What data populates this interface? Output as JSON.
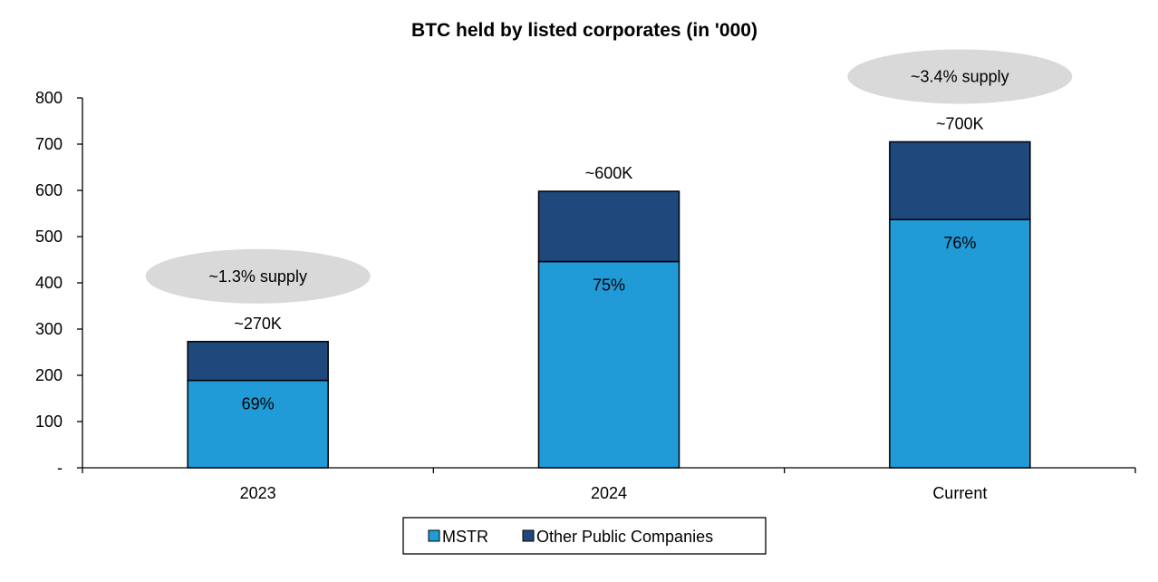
{
  "chart_data": {
    "type": "bar",
    "stacked": true,
    "title": "BTC held by listed corporates (in '000)",
    "categories": [
      "2023",
      "2024",
      "Current"
    ],
    "series": [
      {
        "name": "MSTR",
        "values": [
          189,
          446,
          537
        ],
        "color": "#219bd8"
      },
      {
        "name": "Other Public Companies",
        "values": [
          84,
          152,
          168
        ],
        "color": "#1f497d"
      }
    ],
    "total_labels": [
      "~270K",
      "~600K",
      "~700K"
    ],
    "percent_labels": [
      "69%",
      "75%",
      "76%"
    ],
    "supply_annotations": [
      {
        "category": "2023",
        "text": "~1.3% supply"
      },
      {
        "category": "Current",
        "text": "~3.4% supply"
      }
    ],
    "ylim": [
      0,
      800
    ],
    "yticks": [
      0,
      100,
      200,
      300,
      400,
      500,
      600,
      700,
      800
    ],
    "ytick_labels": [
      "-",
      "100",
      "200",
      "300",
      "400",
      "500",
      "600",
      "700",
      "800"
    ],
    "xlabel": "",
    "ylabel": "",
    "grid": false,
    "legend_position": "bottom-center"
  }
}
